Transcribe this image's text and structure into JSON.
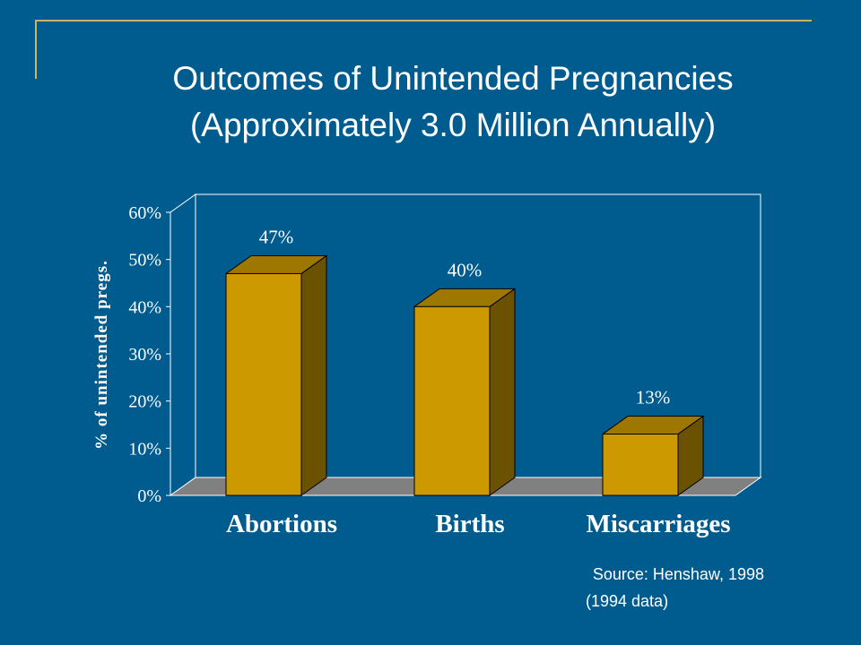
{
  "title": {
    "line1": "Outcomes of Unintended Pregnancies",
    "line2": "(Approximately 3.0 Million Annually)"
  },
  "source": {
    "line1": "Source: Henshaw, 1998",
    "line2": "(1994 data)"
  },
  "colors": {
    "background": "#005B8F",
    "accent_line": "#C9B36A",
    "bar_front": "#CC9900",
    "bar_top": "#9E7700",
    "bar_side": "#6B5200",
    "floor": "#808080",
    "text": "#FFFFFF"
  },
  "chart_data": {
    "type": "bar",
    "categories": [
      "Abortions",
      "Births",
      "Miscarriages"
    ],
    "values": [
      47,
      40,
      13
    ],
    "data_labels": [
      "47%",
      "40%",
      "13%"
    ],
    "ylabel": "% of unintended pregs.",
    "yticks": [
      "0%",
      "10%",
      "20%",
      "30%",
      "40%",
      "50%",
      "60%"
    ],
    "ylim": [
      0,
      60
    ],
    "grid": false,
    "legend": "none",
    "style": "3d"
  }
}
